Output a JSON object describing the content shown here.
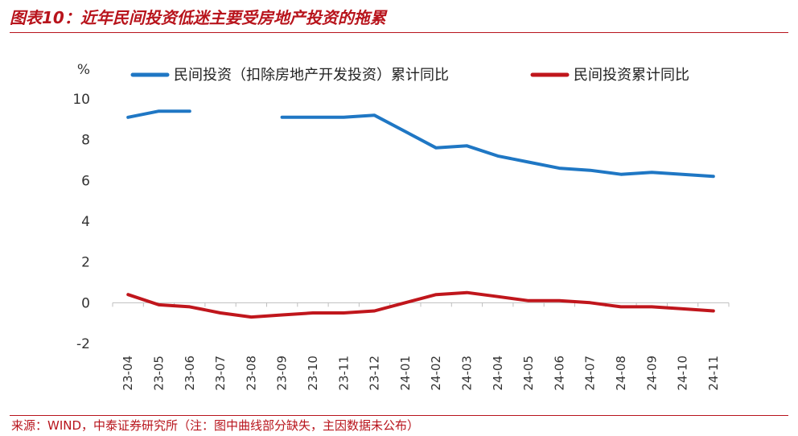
{
  "header": {
    "title": "图表10：近年民间投资低迷主要受房地产投资的拖累"
  },
  "footer": {
    "source": "来源：WIND，中泰证券研究所（注：图中曲线部分缺失，主因数据未公布）"
  },
  "colors": {
    "accent": "#b8141c",
    "series_blue": "#1f77c4",
    "series_red": "#c0161c"
  },
  "chart_data": {
    "type": "line",
    "unit_label": "%",
    "categories": [
      "23-04",
      "23-05",
      "23-06",
      "23-07",
      "23-08",
      "23-09",
      "23-10",
      "23-11",
      "23-12",
      "24-01",
      "24-02",
      "24-03",
      "24-04",
      "24-05",
      "24-06",
      "24-07",
      "24-08",
      "24-09",
      "24-10",
      "24-11"
    ],
    "series": [
      {
        "name": "民间投资（扣除房地产开发投资）累计同比",
        "color": "#1f77c4",
        "values": [
          9.1,
          9.4,
          9.4,
          null,
          null,
          9.1,
          9.1,
          9.1,
          9.2,
          8.4,
          7.6,
          7.7,
          7.2,
          6.9,
          6.6,
          6.5,
          6.3,
          6.4,
          6.3,
          6.2
        ]
      },
      {
        "name": "民间投资累计同比",
        "color": "#c0161c",
        "values": [
          0.4,
          -0.1,
          -0.2,
          -0.5,
          -0.7,
          -0.6,
          -0.5,
          -0.5,
          -0.4,
          0.0,
          0.4,
          0.5,
          0.3,
          0.1,
          0.1,
          0.0,
          -0.2,
          -0.2,
          -0.3,
          -0.4
        ]
      }
    ],
    "ylim": [
      -2,
      10
    ],
    "yticks": [
      -2,
      0,
      2,
      4,
      6,
      8,
      10
    ],
    "legend_position": "top",
    "grid": false
  }
}
